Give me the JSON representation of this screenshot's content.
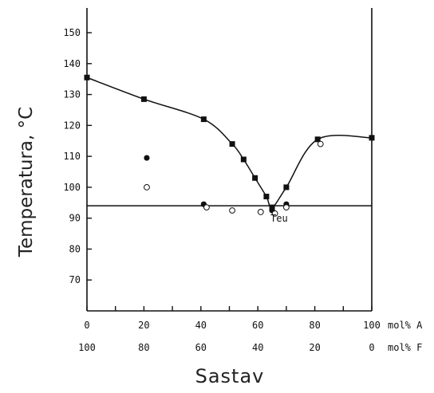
{
  "chart_data": {
    "type": "scatter",
    "xlabel": "Sastav",
    "ylabel": "Temperatura, °C",
    "xlim": [
      0,
      100
    ],
    "ylim": [
      60,
      158
    ],
    "yticks": [
      70,
      80,
      90,
      100,
      110,
      120,
      130,
      140,
      150
    ],
    "xticks_top": [
      "0",
      "20",
      "40",
      "60",
      "80",
      "100"
    ],
    "xticks_bottom": [
      "100",
      "80",
      "60",
      "40",
      "20",
      "0"
    ],
    "xtick_unit_top": "mol% A",
    "xtick_unit_bottom": "mol% F",
    "grid": false,
    "annotations": [
      {
        "text": "Teu",
        "x": 67,
        "y": 92.2
      }
    ],
    "series": [
      {
        "marker": "filled-square",
        "connected": true,
        "x": [
          0,
          20,
          41,
          51,
          55,
          59,
          63,
          65,
          70,
          81,
          100
        ],
        "y": [
          135.5,
          128.5,
          122,
          114,
          109,
          103,
          97,
          93.5,
          100,
          115.5,
          116
        ]
      },
      {
        "marker": "filled-circle",
        "connected": false,
        "x": [
          21,
          41,
          65,
          70
        ],
        "y": [
          109.5,
          94.5,
          92.5,
          94.5
        ]
      },
      {
        "marker": "open-circle",
        "connected": false,
        "x": [
          21,
          42,
          51,
          61,
          66,
          70,
          82
        ],
        "y": [
          100,
          93.5,
          92.5,
          92,
          91.5,
          93.5,
          114
        ]
      }
    ],
    "horizontal_line": {
      "y": 94
    }
  }
}
